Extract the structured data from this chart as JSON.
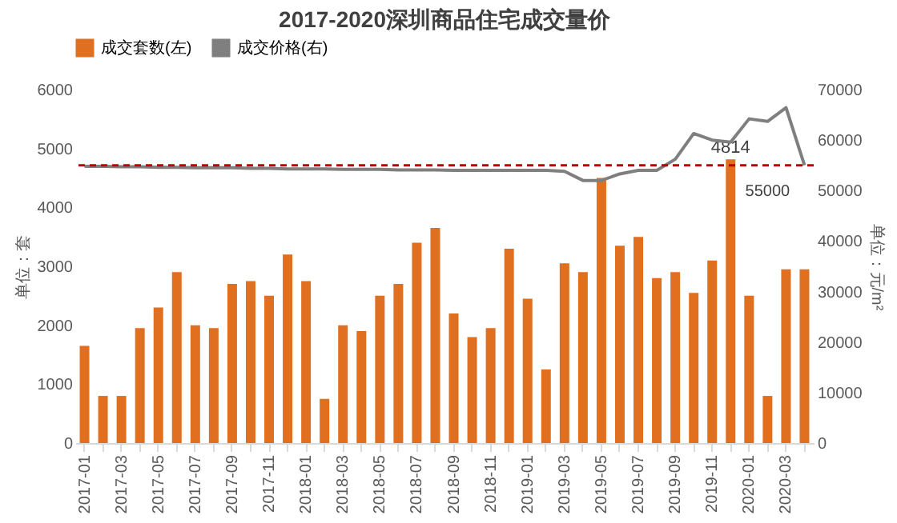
{
  "chart_data": {
    "type": "bar",
    "title": "2017-2020深圳商品住宅成交量价",
    "ylabel": "单位：套",
    "y2label": "单位：元/m²",
    "categories": [
      "2017-01",
      null,
      "2017-03",
      null,
      "2017-05",
      null,
      "2017-07",
      null,
      "2017-09",
      null,
      "2017-11",
      null,
      "2018-01",
      null,
      "2018-03",
      null,
      "2018-05",
      null,
      "2018-07",
      null,
      "2018-09",
      null,
      "2018-11",
      null,
      "2019-01",
      null,
      "2019-03",
      null,
      "2019-05",
      null,
      "2019-07",
      null,
      "2019-09",
      null,
      "2019-11",
      null,
      "2020-01",
      null,
      "2020-03",
      null
    ],
    "series": [
      {
        "name": "成交套数(左)",
        "color": "#e07020",
        "values": [
          1650,
          800,
          800,
          1950,
          2300,
          2900,
          2000,
          1950,
          2700,
          2750,
          2500,
          3200,
          2750,
          750,
          2000,
          1900,
          2500,
          2700,
          3400,
          3650,
          2200,
          1800,
          1950,
          3300,
          2450,
          1250,
          3050,
          2900,
          4500,
          3350,
          3500,
          2800,
          2900,
          2550,
          3100,
          4814,
          2500,
          800,
          2950,
          2950
        ],
        "value_labels": [
          null,
          null,
          null,
          null,
          null,
          null,
          null,
          null,
          null,
          null,
          null,
          null,
          null,
          null,
          null,
          null,
          null,
          null,
          null,
          null,
          null,
          null,
          null,
          null,
          null,
          null,
          null,
          null,
          null,
          null,
          null,
          null,
          null,
          null,
          null,
          "4814",
          null,
          null,
          null,
          null
        ]
      },
      {
        "name": "成交价格(右)",
        "type": "line",
        "axis": "y2",
        "color": "#7f7f7f",
        "values": [
          54800,
          54800,
          54700,
          54700,
          54600,
          54600,
          54500,
          54500,
          54500,
          54400,
          54400,
          54300,
          54300,
          54300,
          54200,
          54200,
          54200,
          54100,
          54100,
          54100,
          54000,
          54000,
          54000,
          54000,
          54000,
          54000,
          53800,
          52000,
          52000,
          53300,
          54000,
          54000,
          56200,
          61300,
          60000,
          59600,
          64200,
          63700,
          66400,
          55000
        ]
      }
    ],
    "ylim": [
      0,
      6000
    ],
    "yticks": [
      0,
      1000,
      2000,
      3000,
      4000,
      5000,
      6000
    ],
    "y2lim": [
      0,
      70000
    ],
    "y2ticks": [
      0,
      10000,
      20000,
      30000,
      40000,
      50000,
      60000,
      70000
    ],
    "ref_lines": [
      {
        "axis": "y2",
        "value": 55000,
        "label": "55000",
        "color": "#c00000",
        "line_style": "dashed"
      }
    ],
    "legend": "top",
    "grid": false
  }
}
